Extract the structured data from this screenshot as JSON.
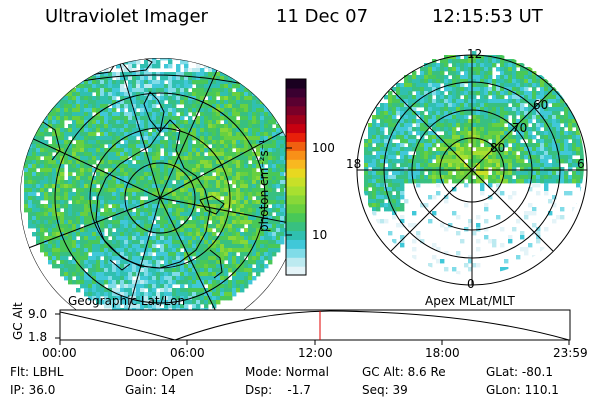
{
  "header": {
    "instrument": "Ultraviolet Imager",
    "date": "11 Dec 07",
    "time": "12:15:53 UT"
  },
  "colorbar": {
    "label": "photon cm⁻²s⁻¹",
    "ticks": [
      "100",
      "10"
    ],
    "colors": [
      "#1a0020",
      "#3a0030",
      "#5a0030",
      "#7a0028",
      "#a0001a",
      "#c80010",
      "#e8200a",
      "#f06010",
      "#f89018",
      "#f8b820",
      "#e8d820",
      "#c8e028",
      "#a8e030",
      "#88d838",
      "#68d040",
      "#48c858",
      "#38c080",
      "#30c0b0",
      "#40c8d8",
      "#80dce8",
      "#bceaf0",
      "#e4f4f8"
    ]
  },
  "geo_map": {
    "label": "Geographic Lat/Lon"
  },
  "polar_map": {
    "label": "Apex MLat/MLT",
    "mlt_labels": {
      "top": "12",
      "left": "18",
      "right": "6",
      "bottom": "0"
    },
    "lat_labels": [
      "60",
      "70",
      "80"
    ]
  },
  "timeline": {
    "y_axis_title": "GC Alt",
    "y_ticks": [
      "9.0",
      "1.8"
    ],
    "x_ticks": [
      "00:00",
      "06:00",
      "12:00",
      "18:00",
      "23:59"
    ],
    "marker_color": "#e00000"
  },
  "footer": {
    "flt": "Flt: LBHL",
    "ip": "IP: 36.0",
    "door": "Door: Open",
    "gain": "Gain: 14",
    "mode": "Mode: Normal",
    "dsp": "Dsp:    -1.7",
    "gc_alt": "GC Alt: 8.6 Re",
    "seq": "Seq: 39",
    "glat": "GLat: -80.1",
    "glon": "GLon: 110.1"
  }
}
